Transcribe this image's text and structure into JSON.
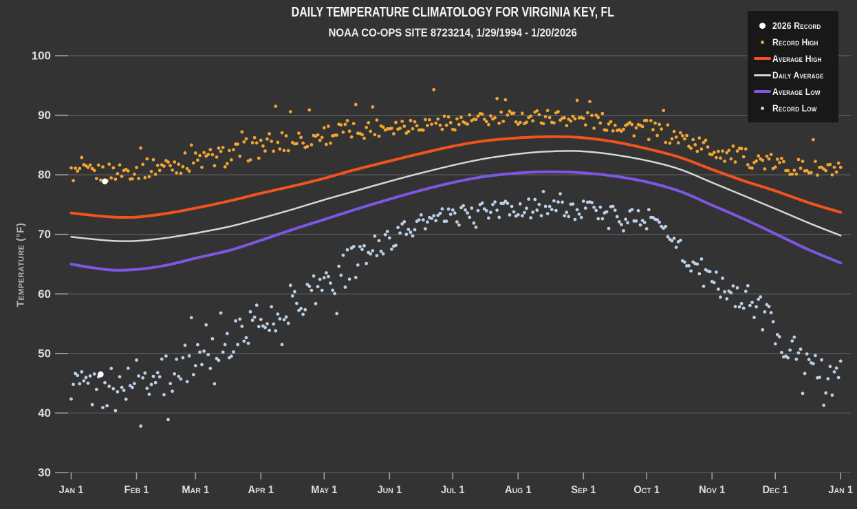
{
  "header": {
    "title": "DAILY TEMPERATURE CLIMATOLOGY FOR VIRGINIA KEY, FL",
    "subtitle": "NOAA CO-OPS SITE 8723214, 1/29/1994 - 1/20/2026"
  },
  "colors": {
    "background": "#333333",
    "legend_bg": "#181818",
    "grid": "#6a6a6a",
    "tick": "#a3a3a3",
    "tick_label": "#dcdcdc",
    "title": "#f5f5f5",
    "axis_label": "#b5b5b5",
    "record_2026": "#ffffff",
    "record_high": "#f0a432",
    "avg_high": "#f2521d",
    "daily_avg": "#d6d6d6",
    "avg_low": "#7d57e3",
    "record_low": "#bad0e8"
  },
  "legend": {
    "items": [
      {
        "label": "2026 Record",
        "marker": "dot-lg",
        "color_key": "record_2026"
      },
      {
        "label": "Record High",
        "marker": "dot",
        "color_key": "record_high"
      },
      {
        "label": "Average High",
        "marker": "line-thick",
        "color_key": "avg_high"
      },
      {
        "label": "Daily Average",
        "marker": "line",
        "color_key": "daily_avg"
      },
      {
        "label": "Average Low",
        "marker": "line-thick",
        "color_key": "avg_low"
      },
      {
        "label": "Record Low",
        "marker": "dot",
        "color_key": "record_low"
      }
    ]
  },
  "chart_data": {
    "type": "line+scatter",
    "title": "DAILY TEMPERATURE CLIMATOLOGY FOR VIRGINIA KEY, FL",
    "subtitle": "NOAA CO-OPS SITE 8723214, 1/29/1994 - 1/20/2026",
    "grid": true,
    "legend_position": "top-right",
    "x_axis": {
      "unit": "day_of_year",
      "range_days": [
        0,
        365
      ],
      "tick_days": [
        0,
        31,
        59,
        90,
        120,
        151,
        181,
        212,
        243,
        273,
        304,
        334,
        365
      ],
      "tick_labels": [
        "Jan 1",
        "Feb 1",
        "Mar 1",
        "Apr 1",
        "May 1",
        "Jun 1",
        "Jul 1",
        "Aug 1",
        "Sep 1",
        "Oct 1",
        "Nov 1",
        "Dec 1",
        "Jan 1"
      ]
    },
    "y_axis": {
      "label": "Temperature (°F)",
      "range": [
        30,
        100
      ],
      "ticks": [
        30,
        40,
        50,
        60,
        70,
        80,
        90,
        100
      ]
    },
    "series": [
      {
        "name": "Record Low",
        "type": "scatter_daily",
        "color_key": "record_low",
        "seed": 2,
        "marker_radius": 2.4,
        "skip_days": [
          14
        ],
        "mean_anchors": [
          [
            0,
            45.0
          ],
          [
            10,
            44.2
          ],
          [
            20,
            44.3
          ],
          [
            31,
            45.8
          ],
          [
            45,
            46.3
          ],
          [
            59,
            49.3
          ],
          [
            75,
            52.0
          ],
          [
            90,
            55.5
          ],
          [
            105,
            58.5
          ],
          [
            120,
            61.8
          ],
          [
            135,
            65.3
          ],
          [
            151,
            69.3
          ],
          [
            166,
            71.8
          ],
          [
            181,
            73.0
          ],
          [
            196,
            73.8
          ],
          [
            212,
            74.3
          ],
          [
            227,
            74.5
          ],
          [
            243,
            74.0
          ],
          [
            258,
            73.4
          ],
          [
            273,
            72.4
          ],
          [
            283,
            70.8
          ],
          [
            290,
            66.8
          ],
          [
            297,
            64.0
          ],
          [
            304,
            62.0
          ],
          [
            312,
            60.6
          ],
          [
            319,
            59.4
          ],
          [
            327,
            57.5
          ],
          [
            334,
            53.8
          ],
          [
            342,
            50.5
          ],
          [
            350,
            47.8
          ],
          [
            358,
            46.2
          ],
          [
            365,
            46.0
          ]
        ],
        "spread_anchors": [
          [
            0,
            3.2
          ],
          [
            31,
            3.6
          ],
          [
            59,
            3.2
          ],
          [
            90,
            3.2
          ],
          [
            120,
            3.2
          ],
          [
            135,
            3.0
          ],
          [
            151,
            2.0
          ],
          [
            166,
            1.8
          ],
          [
            181,
            1.7
          ],
          [
            212,
            1.6
          ],
          [
            243,
            1.7
          ],
          [
            273,
            1.9
          ],
          [
            290,
            2.4
          ],
          [
            304,
            2.6
          ],
          [
            319,
            2.8
          ],
          [
            334,
            3.2
          ],
          [
            350,
            3.2
          ],
          [
            365,
            3.0
          ]
        ],
        "notable_points": [
          [
            21,
            40.4
          ],
          [
            33,
            37.8
          ],
          [
            46,
            38.9
          ],
          [
            57,
            56.0
          ],
          [
            64,
            54.8
          ],
          [
            68,
            44.9
          ],
          [
            71,
            56.8
          ],
          [
            85,
            57.0
          ],
          [
            100,
            51.5
          ],
          [
            126,
            56.7
          ],
          [
            192,
            71.2
          ],
          [
            224,
            77.2
          ],
          [
            232,
            76.8
          ],
          [
            255,
            71.0
          ],
          [
            262,
            70.6
          ],
          [
            347,
            43.3
          ],
          [
            357,
            41.3
          ],
          [
            361,
            43.0
          ]
        ]
      },
      {
        "name": "Record High",
        "type": "scatter_daily",
        "color_key": "record_high",
        "seed": 1,
        "marker_radius": 2.4,
        "skip_days": [
          16
        ],
        "mean_anchors": [
          [
            0,
            80.2
          ],
          [
            15,
            80.3
          ],
          [
            31,
            80.8
          ],
          [
            45,
            81.6
          ],
          [
            59,
            82.3
          ],
          [
            75,
            83.3
          ],
          [
            90,
            84.8
          ],
          [
            105,
            85.8
          ],
          [
            120,
            86.8
          ],
          [
            135,
            87.6
          ],
          [
            151,
            88.2
          ],
          [
            166,
            88.6
          ],
          [
            181,
            88.8
          ],
          [
            196,
            89.2
          ],
          [
            212,
            89.6
          ],
          [
            227,
            89.8
          ],
          [
            243,
            89.3
          ],
          [
            258,
            88.6
          ],
          [
            273,
            87.6
          ],
          [
            289,
            86.2
          ],
          [
            304,
            84.2
          ],
          [
            319,
            82.9
          ],
          [
            334,
            81.8
          ],
          [
            350,
            81.0
          ],
          [
            365,
            80.6
          ]
        ],
        "spread_anchors": [
          [
            0,
            1.5
          ],
          [
            31,
            1.6
          ],
          [
            59,
            1.8
          ],
          [
            90,
            2.0
          ],
          [
            120,
            1.9
          ],
          [
            151,
            1.5
          ],
          [
            181,
            1.3
          ],
          [
            212,
            1.3
          ],
          [
            243,
            1.4
          ],
          [
            273,
            1.7
          ],
          [
            304,
            1.6
          ],
          [
            334,
            1.5
          ],
          [
            365,
            1.4
          ]
        ],
        "notable_points": [
          [
            5,
            82.9
          ],
          [
            33,
            84.5
          ],
          [
            57,
            85.0
          ],
          [
            81,
            87.2
          ],
          [
            97,
            91.5
          ],
          [
            104,
            90.6
          ],
          [
            113,
            90.9
          ],
          [
            135,
            91.8
          ],
          [
            143,
            91.4
          ],
          [
            172,
            94.3
          ],
          [
            202,
            92.8
          ],
          [
            206,
            92.6
          ],
          [
            240,
            92.5
          ],
          [
            246,
            92.3
          ],
          [
            281,
            90.8
          ],
          [
            352,
            85.9
          ]
        ]
      },
      {
        "name": "Average Low",
        "type": "line",
        "color_key": "avg_low",
        "stroke_width": 4,
        "anchors": [
          [
            0,
            65.0
          ],
          [
            10,
            64.4
          ],
          [
            20,
            64.0
          ],
          [
            31,
            64.1
          ],
          [
            45,
            64.8
          ],
          [
            59,
            66.0
          ],
          [
            75,
            67.3
          ],
          [
            90,
            69.0
          ],
          [
            105,
            70.8
          ],
          [
            120,
            72.5
          ],
          [
            135,
            74.2
          ],
          [
            151,
            75.9
          ],
          [
            166,
            77.4
          ],
          [
            181,
            78.7
          ],
          [
            196,
            79.7
          ],
          [
            212,
            80.3
          ],
          [
            225,
            80.5
          ],
          [
            240,
            80.4
          ],
          [
            255,
            79.9
          ],
          [
            273,
            78.8
          ],
          [
            289,
            77.2
          ],
          [
            304,
            74.9
          ],
          [
            319,
            72.6
          ],
          [
            334,
            70.1
          ],
          [
            350,
            67.4
          ],
          [
            365,
            65.2
          ]
        ]
      },
      {
        "name": "Daily Average",
        "type": "line",
        "color_key": "daily_avg",
        "stroke_width": 2.5,
        "anchors": [
          [
            0,
            69.6
          ],
          [
            10,
            69.2
          ],
          [
            20,
            68.9
          ],
          [
            31,
            68.9
          ],
          [
            45,
            69.4
          ],
          [
            59,
            70.2
          ],
          [
            75,
            71.3
          ],
          [
            90,
            72.7
          ],
          [
            105,
            74.2
          ],
          [
            120,
            75.8
          ],
          [
            135,
            77.3
          ],
          [
            151,
            78.9
          ],
          [
            166,
            80.3
          ],
          [
            181,
            81.6
          ],
          [
            196,
            82.7
          ],
          [
            212,
            83.5
          ],
          [
            225,
            83.9
          ],
          [
            240,
            84.0
          ],
          [
            255,
            83.5
          ],
          [
            273,
            82.4
          ],
          [
            289,
            80.9
          ],
          [
            304,
            78.7
          ],
          [
            319,
            76.5
          ],
          [
            334,
            74.3
          ],
          [
            350,
            71.9
          ],
          [
            365,
            69.8
          ]
        ]
      },
      {
        "name": "Average High",
        "type": "line",
        "color_key": "avg_high",
        "stroke_width": 4,
        "anchors": [
          [
            0,
            73.6
          ],
          [
            10,
            73.2
          ],
          [
            20,
            72.9
          ],
          [
            31,
            72.9
          ],
          [
            45,
            73.5
          ],
          [
            59,
            74.4
          ],
          [
            75,
            75.6
          ],
          [
            90,
            76.9
          ],
          [
            105,
            78.1
          ],
          [
            120,
            79.4
          ],
          [
            135,
            80.9
          ],
          [
            151,
            82.3
          ],
          [
            166,
            83.6
          ],
          [
            181,
            84.8
          ],
          [
            196,
            85.7
          ],
          [
            212,
            86.2
          ],
          [
            225,
            86.4
          ],
          [
            240,
            86.3
          ],
          [
            255,
            85.7
          ],
          [
            273,
            84.4
          ],
          [
            289,
            82.9
          ],
          [
            304,
            80.9
          ],
          [
            319,
            79.0
          ],
          [
            334,
            77.3
          ],
          [
            350,
            75.3
          ],
          [
            365,
            73.7
          ]
        ]
      },
      {
        "name": "2026 Record",
        "type": "scatter_points",
        "color_key": "record_2026",
        "marker_radius": 4.3,
        "points": [
          [
            14,
            46.5
          ],
          [
            16,
            78.9
          ]
        ]
      }
    ]
  }
}
